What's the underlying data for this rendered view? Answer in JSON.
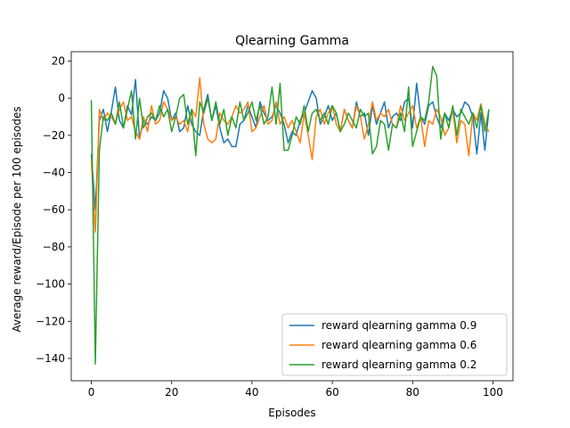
{
  "chart_data": {
    "type": "line",
    "title": "Qlearning Gamma",
    "xlabel": "Episodes",
    "ylabel": "Average reward/Episode per 100 episodes",
    "xlim": [
      -5,
      105
    ],
    "ylim": [
      -152,
      25
    ],
    "xticks": [
      0,
      20,
      40,
      60,
      80,
      100
    ],
    "yticks": [
      20,
      0,
      -20,
      -40,
      -60,
      -80,
      -100,
      -120,
      -140
    ],
    "grid": false,
    "legend_position": "lower-right",
    "series": [
      {
        "name": "reward qlearning gamma 0.9",
        "color": "#1f77b4",
        "x": [
          0,
          1,
          2,
          3,
          4,
          5,
          6,
          7,
          8,
          9,
          10,
          11,
          12,
          13,
          14,
          15,
          16,
          17,
          18,
          19,
          20,
          21,
          22,
          23,
          24,
          25,
          26,
          27,
          28,
          29,
          30,
          31,
          32,
          33,
          34,
          35,
          36,
          37,
          38,
          39,
          40,
          41,
          42,
          43,
          44,
          45,
          46,
          47,
          48,
          49,
          50,
          51,
          52,
          53,
          54,
          55,
          56,
          57,
          58,
          59,
          60,
          61,
          62,
          63,
          64,
          65,
          66,
          67,
          68,
          69,
          70,
          71,
          72,
          73,
          74,
          75,
          76,
          77,
          78,
          79,
          80,
          81,
          82,
          83,
          84,
          85,
          86,
          87,
          88,
          89,
          90,
          91,
          92,
          93,
          94,
          95,
          96,
          97,
          98,
          99
        ],
        "values": [
          -30,
          -60,
          -12,
          -6,
          -18,
          -7,
          6,
          -12,
          -16,
          -4,
          -9,
          10,
          -22,
          -12,
          -14,
          -10,
          -12,
          -8,
          4,
          0,
          -12,
          -8,
          -18,
          -16,
          -4,
          -14,
          -18,
          -20,
          -6,
          2,
          -12,
          -4,
          -16,
          -24,
          -22,
          -26,
          -26,
          -14,
          -12,
          -4,
          -10,
          -16,
          -2,
          -8,
          -12,
          -10,
          -4,
          -8,
          -14,
          -24,
          -18,
          -20,
          -12,
          -8,
          -2,
          4,
          0,
          -14,
          -10,
          -4,
          -12,
          -8,
          -18,
          -6,
          -12,
          -16,
          -2,
          -10,
          -8,
          -20,
          -4,
          -14,
          -8,
          -2,
          -16,
          -10,
          -8,
          -12,
          -2,
          0,
          -16,
          8,
          -10,
          -14,
          -4,
          -2,
          -10,
          -16,
          -8,
          -12,
          -6,
          -10,
          -8,
          -2,
          -4,
          -10,
          -30,
          -8,
          -28,
          -6
        ]
      },
      {
        "name": "reward qlearning gamma 0.6",
        "color": "#ff7f0e",
        "x": [
          0,
          1,
          2,
          3,
          4,
          5,
          6,
          7,
          8,
          9,
          10,
          11,
          12,
          13,
          14,
          15,
          16,
          17,
          18,
          19,
          20,
          21,
          22,
          23,
          24,
          25,
          26,
          27,
          28,
          29,
          30,
          31,
          32,
          33,
          34,
          35,
          36,
          37,
          38,
          39,
          40,
          41,
          42,
          43,
          44,
          45,
          46,
          47,
          48,
          49,
          50,
          51,
          52,
          53,
          54,
          55,
          56,
          57,
          58,
          59,
          60,
          61,
          62,
          63,
          64,
          65,
          66,
          67,
          68,
          69,
          70,
          71,
          72,
          73,
          74,
          75,
          76,
          77,
          78,
          79,
          80,
          81,
          82,
          83,
          84,
          85,
          86,
          87,
          88,
          89,
          90,
          91,
          92,
          93,
          94,
          95,
          96,
          97,
          98,
          99
        ],
        "values": [
          -34,
          -72,
          -6,
          -12,
          -8,
          -10,
          -14,
          -6,
          -2,
          -12,
          -10,
          -18,
          -22,
          -10,
          -18,
          -4,
          -14,
          -12,
          -2,
          -6,
          -12,
          -10,
          -14,
          -12,
          -18,
          -6,
          -10,
          11,
          -14,
          -22,
          -24,
          -22,
          -8,
          -12,
          -14,
          -10,
          -4,
          -8,
          -6,
          -2,
          -18,
          -16,
          -10,
          -4,
          -14,
          -12,
          -2,
          -14,
          -10,
          -16,
          -12,
          -18,
          -24,
          -8,
          -20,
          -33,
          -10,
          -6,
          -14,
          -8,
          -4,
          -14,
          -18,
          -6,
          -12,
          -16,
          -4,
          -10,
          -22,
          -14,
          -2,
          -12,
          -8,
          -10,
          -6,
          -14,
          -16,
          -4,
          -12,
          -8,
          -4,
          -16,
          -10,
          -26,
          -12,
          -14,
          -6,
          -10,
          -20,
          -16,
          -6,
          -24,
          -12,
          -14,
          -31,
          -8,
          -12,
          -3,
          -14,
          -18
        ]
      },
      {
        "name": "reward qlearning gamma 0.2",
        "color": "#2ca02c",
        "x": [
          0,
          1,
          2,
          3,
          4,
          5,
          6,
          7,
          8,
          9,
          10,
          11,
          12,
          13,
          14,
          15,
          16,
          17,
          18,
          19,
          20,
          21,
          22,
          23,
          24,
          25,
          26,
          27,
          28,
          29,
          30,
          31,
          32,
          33,
          34,
          35,
          36,
          37,
          38,
          39,
          40,
          41,
          42,
          43,
          44,
          45,
          46,
          47,
          48,
          49,
          50,
          51,
          52,
          53,
          54,
          55,
          56,
          57,
          58,
          59,
          60,
          61,
          62,
          63,
          64,
          65,
          66,
          67,
          68,
          69,
          70,
          71,
          72,
          73,
          74,
          75,
          76,
          77,
          78,
          79,
          80,
          81,
          82,
          83,
          84,
          85,
          86,
          87,
          88,
          89,
          90,
          91,
          92,
          93,
          94,
          95,
          96,
          97,
          98,
          99
        ],
        "values": [
          -1,
          -143,
          -28,
          -10,
          -12,
          -8,
          -14,
          -2,
          -16,
          -6,
          4,
          -22,
          0,
          -16,
          -10,
          -8,
          -12,
          -4,
          -10,
          -6,
          -18,
          -10,
          0,
          2,
          -14,
          -6,
          -31,
          -2,
          -8,
          0,
          -12,
          -2,
          -14,
          -6,
          -20,
          -10,
          -16,
          -2,
          -12,
          -8,
          -2,
          -12,
          -4,
          -14,
          -10,
          6,
          -14,
          8,
          -28,
          -28,
          -20,
          -10,
          -14,
          -4,
          -18,
          -8,
          -6,
          -12,
          -8,
          -14,
          -4,
          -8,
          -18,
          -14,
          -8,
          -12,
          -16,
          -6,
          -10,
          -8,
          -30,
          -26,
          -12,
          -14,
          -28,
          -14,
          -16,
          -8,
          -18,
          6,
          -26,
          -18,
          -10,
          -12,
          -2,
          17,
          12,
          -22,
          -8,
          -16,
          -4,
          -20,
          -6,
          -10,
          -14,
          -8,
          -16,
          -4,
          -18,
          -6
        ]
      }
    ]
  }
}
